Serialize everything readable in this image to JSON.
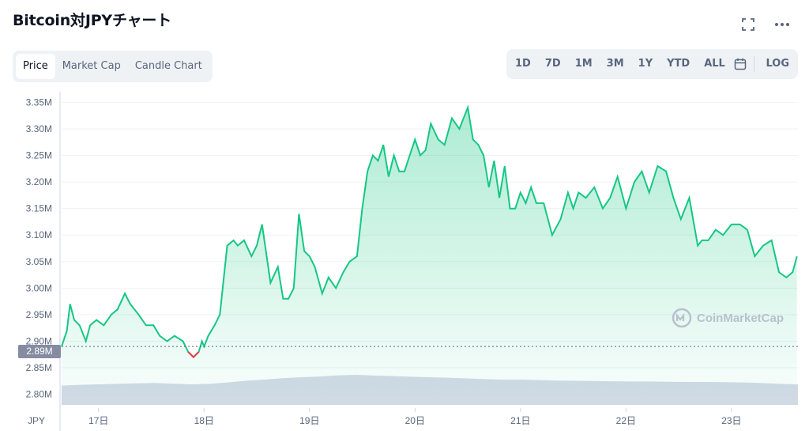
{
  "header": {
    "title": "Bitcoin対JPYチャート",
    "fullscreen_icon": "fullscreen-icon",
    "more_icon": "more-icon"
  },
  "tabs": [
    {
      "label": "Price",
      "active": true
    },
    {
      "label": "Market Cap",
      "active": false
    },
    {
      "label": "Candle Chart",
      "active": false
    }
  ],
  "ranges": [
    "1D",
    "7D",
    "1M",
    "3M",
    "1Y",
    "YTD",
    "ALL"
  ],
  "log_label": "LOG",
  "calendar_icon": "calendar-icon",
  "current_price_label": "2.89M",
  "currency_label": "JPY",
  "watermark": "CoinMarketCap",
  "colors": {
    "line_up": "#16c784",
    "line_down": "#ea3943",
    "volume": "#cfd6e4",
    "tab_bg": "#eff2f5"
  },
  "chart_data": {
    "type": "area",
    "unit": "JPY",
    "y_ticks": [
      "2.80M",
      "2.85M",
      "2.90M",
      "2.95M",
      "3.00M",
      "3.05M",
      "3.10M",
      "3.15M",
      "3.20M",
      "3.25M",
      "3.30M",
      "3.35M"
    ],
    "ylim": [
      2.78,
      3.37
    ],
    "x_ticks": [
      "17日",
      "18日",
      "19日",
      "20日",
      "21日",
      "22日",
      "23日"
    ],
    "xlim": [
      16.65,
      23.63
    ],
    "baseline": 2.89,
    "series": [
      {
        "x": [
          16.65,
          16.7,
          16.73,
          16.77,
          16.82,
          16.88,
          16.92,
          16.98,
          17.05,
          17.12,
          17.18,
          17.25,
          17.3,
          17.38,
          17.45,
          17.52,
          17.58,
          17.65,
          17.72,
          17.8,
          17.85,
          17.9,
          17.95,
          17.98,
          18.0,
          18.04,
          18.1,
          18.15,
          18.22,
          18.28,
          18.32,
          18.38,
          18.45,
          18.5,
          18.55,
          18.63,
          18.7,
          18.75,
          18.8,
          18.85,
          18.9,
          18.95,
          19.0,
          19.05,
          19.12,
          19.18,
          19.25,
          19.32,
          19.38,
          19.45,
          19.5,
          19.55,
          19.6,
          19.65,
          19.7,
          19.75,
          19.8,
          19.85,
          19.9,
          19.95,
          20.0,
          20.05,
          20.1,
          20.15,
          20.22,
          20.28,
          20.35,
          20.42,
          20.5,
          20.55,
          20.6,
          20.65,
          20.7,
          20.75,
          20.8,
          20.85,
          20.9,
          20.95,
          21.0,
          21.05,
          21.1,
          21.15,
          21.22,
          21.3,
          21.38,
          21.45,
          21.5,
          21.55,
          21.62,
          21.7,
          21.78,
          21.85,
          21.92,
          22.0,
          22.08,
          22.15,
          22.22,
          22.3,
          22.38,
          22.45,
          22.52,
          22.6,
          22.68,
          22.72,
          22.78,
          22.85,
          22.92,
          23.0,
          23.08,
          23.15,
          23.22,
          23.3,
          23.38,
          23.45,
          23.52,
          23.58,
          23.62
        ],
        "y": [
          2.89,
          2.92,
          2.97,
          2.94,
          2.93,
          2.9,
          2.93,
          2.94,
          2.93,
          2.95,
          2.96,
          2.99,
          2.97,
          2.95,
          2.93,
          2.93,
          2.91,
          2.9,
          2.91,
          2.9,
          2.88,
          2.87,
          2.88,
          2.9,
          2.89,
          2.91,
          2.93,
          2.95,
          3.08,
          3.09,
          3.08,
          3.09,
          3.06,
          3.08,
          3.12,
          3.01,
          3.04,
          2.98,
          2.98,
          3.0,
          3.14,
          3.07,
          3.06,
          3.04,
          2.99,
          3.02,
          3.0,
          3.03,
          3.05,
          3.06,
          3.15,
          3.22,
          3.25,
          3.24,
          3.27,
          3.21,
          3.25,
          3.22,
          3.22,
          3.25,
          3.28,
          3.25,
          3.26,
          3.31,
          3.28,
          3.27,
          3.32,
          3.3,
          3.34,
          3.28,
          3.27,
          3.25,
          3.19,
          3.24,
          3.17,
          3.23,
          3.15,
          3.15,
          3.18,
          3.16,
          3.19,
          3.16,
          3.16,
          3.1,
          3.13,
          3.18,
          3.15,
          3.18,
          3.17,
          3.19,
          3.15,
          3.17,
          3.21,
          3.15,
          3.2,
          3.22,
          3.18,
          3.23,
          3.22,
          3.17,
          3.13,
          3.17,
          3.08,
          3.09,
          3.09,
          3.11,
          3.1,
          3.12,
          3.12,
          3.11,
          3.06,
          3.08,
          3.09,
          3.03,
          3.02,
          3.03,
          3.06
        ]
      }
    ],
    "volume_relative": [
      0.55,
      0.58,
      0.6,
      0.62,
      0.64,
      0.66,
      0.63,
      0.6,
      0.62,
      0.68,
      0.75,
      0.8,
      0.86,
      0.9,
      0.93,
      0.98,
      1.0,
      0.97,
      0.95,
      0.92,
      0.9,
      0.88,
      0.85,
      0.82,
      0.8,
      0.8,
      0.78,
      0.76,
      0.75,
      0.74,
      0.73,
      0.72,
      0.72,
      0.71,
      0.7,
      0.7,
      0.69,
      0.68,
      0.66,
      0.62,
      0.6
    ]
  }
}
